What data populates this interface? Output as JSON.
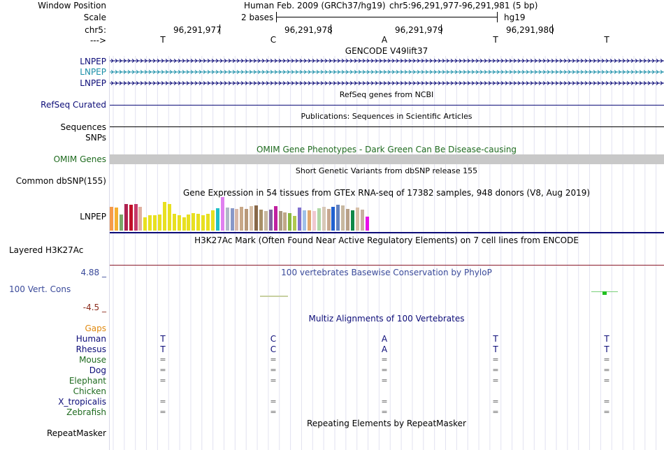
{
  "header": {
    "window_position_label": "Window Position",
    "scale_label": "Scale",
    "chr_label": "chr5:",
    "strand_label": "--->",
    "assembly_title": "Human Feb. 2009 (GRCh37/hg19)",
    "position": "chr5:96,291,977-96,291,981 (5 bp)",
    "scale_value": "2 bases",
    "scale_assembly": "hg19",
    "coords": [
      "96,291,977",
      "96,291,978",
      "96,291,979",
      "96,291,980"
    ],
    "bases": [
      "T",
      "C",
      "A",
      "T",
      "T"
    ]
  },
  "tracks": {
    "gencode": {
      "title": "GENCODE V49lift37",
      "items": [
        "LNPEP",
        "LNPEP",
        "LNPEP"
      ],
      "colors": [
        "#0c0c78",
        "#1a8fa8",
        "#0c0c78"
      ]
    },
    "refseq": {
      "title": "RefSeq genes from NCBI",
      "label": "RefSeq Curated"
    },
    "publications": {
      "title": "Publications: Sequences in Scientific Articles",
      "label_sequences": "Sequences",
      "label_snps": "SNPs"
    },
    "omim": {
      "title": "OMIM Gene Phenotypes - Dark Green Can Be Disease-causing",
      "label": "OMIM Genes",
      "color": "#1f6b1f"
    },
    "dbsnp": {
      "title": "Short Genetic Variants from dbSNP release 155",
      "label": "Common dbSNP(155)"
    },
    "gtex": {
      "title": "Gene Expression in 54 tissues from GTEx RNA-seq of 17382 samples, 948 donors (V8, Aug 2019)",
      "label": "LNPEP",
      "levels": [
        0.7,
        0.68,
        0.48,
        0.8,
        0.78,
        0.8,
        0.7,
        0.4,
        0.45,
        0.45,
        0.48,
        0.85,
        0.8,
        0.5,
        0.45,
        0.4,
        0.48,
        0.52,
        0.5,
        0.45,
        0.5,
        0.6,
        0.66,
        1.0,
        0.68,
        0.66,
        0.64,
        0.7,
        0.64,
        0.72,
        0.75,
        0.62,
        0.58,
        0.62,
        0.72,
        0.58,
        0.54,
        0.52,
        0.44,
        0.68,
        0.6,
        0.6,
        0.58,
        0.66,
        0.7,
        0.64,
        0.7,
        0.78,
        0.75,
        0.64,
        0.6,
        0.68,
        0.62,
        0.42
      ],
      "colors": [
        "#f59a4a",
        "#f5b030",
        "#7aa86a",
        "#b02050",
        "#c01028",
        "#c63a6a",
        "#e0b0a0",
        "#e8e020",
        "#e8e020",
        "#e8e020",
        "#e8e020",
        "#e8e020",
        "#e8e020",
        "#e8e020",
        "#e8e020",
        "#e8e020",
        "#e8e020",
        "#e8e020",
        "#e8e020",
        "#e8e020",
        "#e8e020",
        "#e8e020",
        "#20c0c8",
        "#e080f0",
        "#b0b8c8",
        "#8898c8",
        "#d8b8a8",
        "#c8a888",
        "#b89878",
        "#d8c0a8",
        "#886848",
        "#a89068",
        "#c8b8a0",
        "#8060a0",
        "#c020a0",
        "#a89880",
        "#c0a888",
        "#88b840",
        "#b0c850",
        "#8070d0",
        "#a0c0e8",
        "#e0a870",
        "#f0c8d0",
        "#b0d8a8",
        "#d8c8b8",
        "#c8a890",
        "#2060d0",
        "#6080c0",
        "#c8b8a0",
        "#b8a088",
        "#108848",
        "#d8c0a8",
        "#c8b0a0",
        "#e810e8"
      ]
    },
    "h3k27ac": {
      "title": "H3K27Ac Mark (Often Found Near Active Regulatory Elements) on 7 cell lines from ENCODE",
      "label": "Layered H3K27Ac"
    },
    "phylop": {
      "title": "100 vertebrates Basewise Conservation by PhyloP",
      "label": "100 Vert. Cons",
      "max": "4.88 _",
      "min": "-4.5 _",
      "color": "#3a4a9a"
    },
    "multiz": {
      "title": "Multiz Alignments of 100 Vertebrates",
      "gaps_label": "Gaps",
      "species": [
        {
          "name": "Human",
          "color": "#0c0c78",
          "row": [
            "T",
            "C",
            "A",
            "T",
            "T"
          ]
        },
        {
          "name": "Rhesus",
          "color": "#0c0c78",
          "row": [
            "T",
            "C",
            "A",
            "T",
            "T"
          ]
        },
        {
          "name": "Mouse",
          "color": "#1f6b1f",
          "row": [
            "=",
            "=",
            "=",
            "=",
            "="
          ]
        },
        {
          "name": "Dog",
          "color": "#0c0c78",
          "row": [
            "=",
            "=",
            "=",
            "=",
            "="
          ]
        },
        {
          "name": "Elephant",
          "color": "#1f6b1f",
          "row": [
            "=",
            "=",
            "=",
            "=",
            "="
          ]
        },
        {
          "name": "Chicken",
          "color": "#1f6b1f",
          "row": [
            "",
            "",
            "",
            "",
            ""
          ]
        },
        {
          "name": "X_tropicalis",
          "color": "#0c0c78",
          "row": [
            "=",
            "=",
            "=",
            "=",
            "="
          ]
        },
        {
          "name": "Zebrafish",
          "color": "#1f6b1f",
          "row": [
            "=",
            "=",
            "=",
            "=",
            "="
          ]
        }
      ]
    },
    "repeatmasker": {
      "title": "Repeating Elements by RepeatMasker",
      "label": "RepeatMasker"
    }
  }
}
